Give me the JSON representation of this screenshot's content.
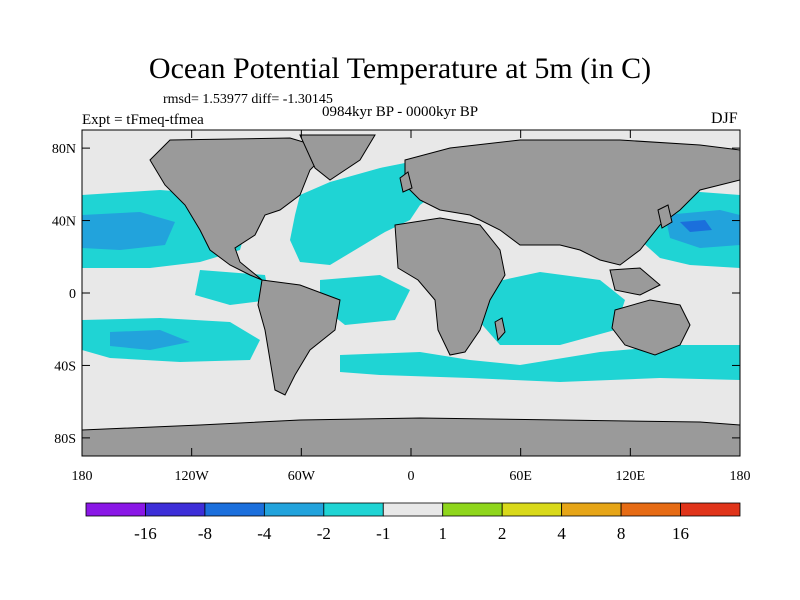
{
  "title": "Ocean Potential Temperature at 5m (in C)",
  "stats_text": "rmsd= 1.53977   diff= -1.30145",
  "experiment_label": "Expt = tFmeq-tfmea",
  "period_label": "0984kyr BP - 0000kyr BP",
  "season_label": "DJF",
  "y_axis": {
    "ticks": [
      {
        "label": "80N",
        "lat": 80
      },
      {
        "label": "40N",
        "lat": 40
      },
      {
        "label": "0",
        "lat": 0
      },
      {
        "label": "40S",
        "lat": -40
      },
      {
        "label": "80S",
        "lat": -80
      }
    ],
    "range": [
      -90,
      90
    ]
  },
  "x_axis": {
    "ticks": [
      {
        "label": "180",
        "lon": -180
      },
      {
        "label": "120W",
        "lon": -120
      },
      {
        "label": "60W",
        "lon": -60
      },
      {
        "label": "0",
        "lon": 0
      },
      {
        "label": "60E",
        "lon": 60
      },
      {
        "label": "120E",
        "lon": 120
      },
      {
        "label": "180",
        "lon": 180
      }
    ],
    "range": [
      -180,
      180
    ]
  },
  "colorbar": {
    "colors": [
      "#8a17e6",
      "#3d2ed8",
      "#1b6fdc",
      "#22a3dc",
      "#1fd4d4",
      "#e8e8e8",
      "#8fd61c",
      "#d9d91a",
      "#e6a517",
      "#e66b14",
      "#e0341a"
    ],
    "labels": [
      "-16",
      "-8",
      "-4",
      "-2",
      "-1",
      "1",
      "2",
      "4",
      "8",
      "16"
    ]
  },
  "map_colors": {
    "land": "#9a9a9a",
    "neutral": "#e8e8e8",
    "cool1": "#1fd4d4",
    "cool2": "#22a3dc",
    "cool3": "#1b6fdc"
  }
}
